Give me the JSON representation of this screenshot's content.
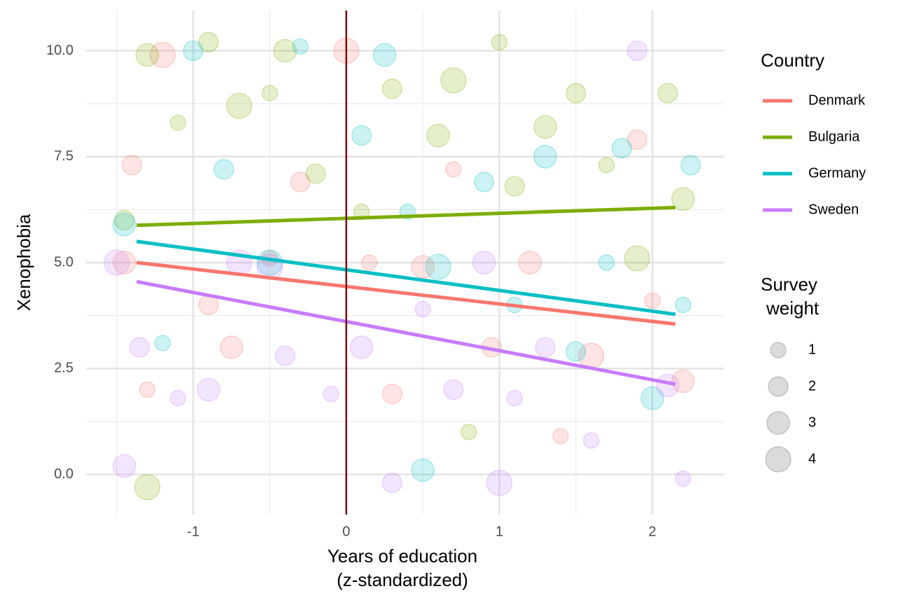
{
  "chart_data": {
    "type": "scatter",
    "x_label": [
      "Years of education",
      "(z-standardized)"
    ],
    "y_label": "Xenophobia",
    "xlim": [
      -1.7,
      2.47
    ],
    "ylim": [
      -0.95,
      10.95
    ],
    "xticks": [
      -1,
      0,
      1,
      2
    ],
    "minor_xticks": [
      -1.5,
      -0.5,
      0.5,
      1.5
    ],
    "yticks": [
      {
        "value": 0,
        "label": "0.0"
      },
      {
        "value": 2.5,
        "label": "2.5"
      },
      {
        "value": 5,
        "label": "5.0"
      },
      {
        "value": 7.5,
        "label": "7.5"
      },
      {
        "value": 10,
        "label": "10.0"
      }
    ],
    "minor_yticks": [
      1.25,
      3.75,
      6.25,
      8.75
    ],
    "grid": true,
    "vline": {
      "x": 0,
      "color": "#7b0d0d"
    },
    "legend_title": "Country",
    "size_title": [
      "Survey",
      "weight"
    ],
    "size_legend": [
      1,
      2,
      3,
      4
    ],
    "series": [
      {
        "name": "Denmark",
        "color": "#F8766D",
        "x": [
          -1.45,
          -1.4,
          -1.3,
          -1.2,
          -0.9,
          -0.75,
          -0.5,
          -0.3,
          0.0,
          0.15,
          0.3,
          0.5,
          0.7,
          0.95,
          1.2,
          1.4,
          1.6,
          1.9,
          2.0,
          2.2
        ],
        "values": [
          5.0,
          7.3,
          2.0,
          9.9,
          4.0,
          3.0,
          5.1,
          6.9,
          10.0,
          5.0,
          1.9,
          4.9,
          7.2,
          3.0,
          5.0,
          0.9,
          2.8,
          7.9,
          4.1,
          2.2
        ],
        "sizes": [
          3,
          2,
          1,
          4,
          2,
          3,
          1,
          2,
          4,
          1,
          2,
          3,
          1,
          2,
          3,
          1,
          4,
          2,
          1,
          3
        ],
        "fit_x": [
          -1.37,
          2.15
        ],
        "fit_values": [
          5.0,
          3.55
        ]
      },
      {
        "name": "Bulgaria",
        "color": "#7CAE00",
        "x": [
          -1.45,
          -1.3,
          -1.1,
          -0.9,
          -0.7,
          -0.5,
          -0.4,
          -0.2,
          0.1,
          0.3,
          0.6,
          0.7,
          1.0,
          1.1,
          1.3,
          1.5,
          1.7,
          1.9,
          2.1,
          2.2,
          -1.3,
          0.8
        ],
        "values": [
          6.0,
          9.9,
          8.3,
          10.2,
          8.7,
          9.0,
          10.0,
          7.1,
          6.2,
          9.1,
          8.0,
          9.3,
          10.2,
          6.8,
          8.2,
          9.0,
          7.3,
          5.1,
          9.0,
          6.5,
          -0.3,
          1.0
        ],
        "sizes": [
          2,
          3,
          1,
          2,
          4,
          1,
          3,
          2,
          1,
          2,
          3,
          4,
          1,
          2,
          3,
          2,
          1,
          4,
          2,
          3,
          4,
          1
        ],
        "fit_x": [
          -1.37,
          2.15
        ],
        "fit_values": [
          5.88,
          6.3
        ]
      },
      {
        "name": "Germany",
        "color": "#00BFC4",
        "x": [
          -1.45,
          -1.2,
          -1.0,
          -0.8,
          -0.5,
          -0.3,
          0.1,
          0.25,
          0.4,
          0.6,
          0.9,
          1.1,
          1.3,
          1.5,
          1.7,
          1.8,
          2.0,
          2.2,
          2.25,
          0.5
        ],
        "values": [
          5.9,
          3.1,
          10.0,
          7.2,
          5.0,
          10.1,
          8.0,
          9.9,
          6.2,
          4.9,
          6.9,
          4.0,
          7.5,
          2.9,
          5.0,
          7.7,
          1.8,
          4.0,
          7.3,
          0.1
        ],
        "sizes": [
          3,
          1,
          2,
          2,
          4,
          1,
          2,
          3,
          1,
          4,
          2,
          1,
          3,
          2,
          1,
          2,
          3,
          1,
          2,
          3
        ],
        "fit_x": [
          -1.37,
          2.15
        ],
        "fit_values": [
          5.5,
          3.78
        ]
      },
      {
        "name": "Sweden",
        "color": "#C77CFF",
        "x": [
          -1.5,
          -1.45,
          -1.35,
          -1.1,
          -0.9,
          -0.7,
          -0.5,
          -0.4,
          -0.1,
          0.1,
          0.3,
          0.5,
          0.7,
          0.9,
          1.0,
          1.1,
          1.3,
          1.6,
          1.9,
          2.1,
          2.2
        ],
        "values": [
          5.0,
          0.2,
          3.0,
          1.8,
          2.0,
          5.0,
          4.9,
          2.8,
          1.9,
          3.0,
          -0.2,
          3.9,
          2.0,
          5.0,
          -0.2,
          1.8,
          3.0,
          0.8,
          10.0,
          2.1,
          -0.1
        ],
        "sizes": [
          4,
          3,
          2,
          1,
          3,
          4,
          4,
          2,
          1,
          3,
          2,
          1,
          2,
          3,
          4,
          1,
          2,
          1,
          2,
          3,
          1
        ],
        "fit_x": [
          -1.37,
          2.15
        ],
        "fit_values": [
          4.55,
          2.13
        ]
      }
    ]
  }
}
